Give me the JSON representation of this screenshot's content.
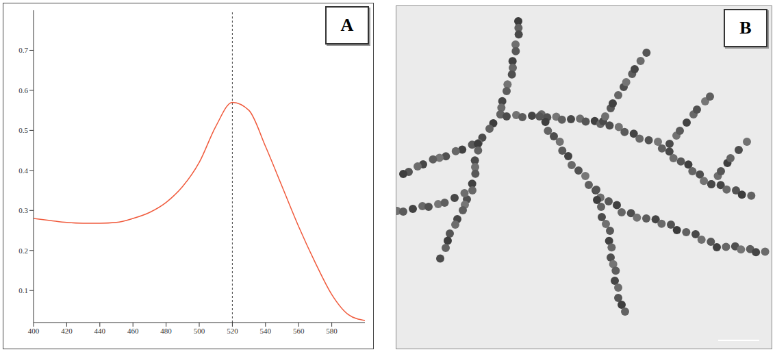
{
  "chart_data": {
    "type": "line",
    "panel": "A",
    "x": [
      400,
      410,
      420,
      430,
      440,
      450,
      460,
      470,
      480,
      490,
      500,
      510,
      520,
      530,
      540,
      550,
      560,
      570,
      580,
      590,
      600
    ],
    "values": [
      0.28,
      0.275,
      0.27,
      0.268,
      0.268,
      0.27,
      0.28,
      0.295,
      0.32,
      0.36,
      0.42,
      0.51,
      0.57,
      0.55,
      0.46,
      0.36,
      0.26,
      0.17,
      0.09,
      0.04,
      0.025
    ],
    "color": "#f05a3c",
    "xlim": [
      400,
      600
    ],
    "xticks": [
      400,
      420,
      440,
      460,
      480,
      500,
      520,
      540,
      560,
      580
    ],
    "ylim": [
      0.02,
      0.8
    ],
    "yticks": [
      0.1,
      0.2,
      0.3,
      0.4,
      0.5,
      0.6,
      0.7
    ],
    "peak": 520,
    "grid": false
  },
  "image": {
    "panel": "B"
  }
}
